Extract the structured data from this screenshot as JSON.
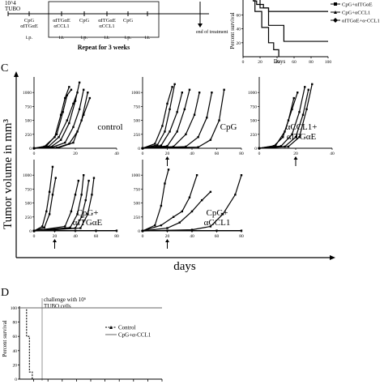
{
  "figure": {
    "panel_labels": {
      "c": "C",
      "d": "D"
    }
  },
  "schedule": {
    "top_text": "10^4",
    "top_text2": "TUBO",
    "boxes": [
      {
        "top": "CpG",
        "bottom": "αITGαE"
      },
      {
        "top": "αITGαE",
        "bottom": "αCCL1"
      },
      {
        "top": "CpG",
        "bottom": ""
      },
      {
        "top": "αITGαE",
        "bottom": "αCCL1"
      },
      {
        "top": "CpG",
        "bottom": ""
      }
    ],
    "routes": [
      "i.p.",
      "i.t.",
      "i.p.",
      "i.t.",
      "i.p.",
      "i.t."
    ],
    "repeat_text": "Repeat for 3 weeks",
    "end_text": "end of treatment"
  },
  "survival_top": {
    "ylabel": "Percent survival",
    "xlabel": "Days",
    "xticks": [
      "0",
      "20",
      "40",
      "60",
      "80",
      "100"
    ],
    "yticks": [
      "20",
      "40",
      "60"
    ],
    "legend": [
      "CpG+αITGαE",
      "CpG+αCCL1",
      "αITGαE+α-CCL1"
    ]
  },
  "panel_c": {
    "ylabel": "Tumor volume in mm³",
    "xlabel": "days",
    "yticks": [
      "0",
      "250",
      "500",
      "750",
      "1000"
    ],
    "xticks_short": [
      "0",
      "20",
      "40"
    ],
    "xticks_long": [
      "0",
      "20",
      "40",
      "60",
      "80"
    ],
    "subplots": [
      {
        "label": "control"
      },
      {
        "label": "CpG"
      },
      {
        "label": "αCCL1+",
        "label2": "αITGαE"
      },
      {
        "label": "CpG+",
        "label2": "αITGαE"
      },
      {
        "label": "CpG+",
        "label2": "αCCL1"
      }
    ]
  },
  "panel_d": {
    "ylabel": "Percent survival",
    "yticks": [
      "0",
      "20",
      "40",
      "60",
      "80",
      "100"
    ],
    "annotation": "challenge with 10⁶",
    "annotation2": "TUBO cells",
    "legend": [
      "Control",
      "CpG+α-CCL1"
    ]
  },
  "chart_data": [
    {
      "type": "line",
      "title": "",
      "xlabel": "Days",
      "ylabel": "Percent survival",
      "xlim": [
        0,
        100
      ],
      "ylim": [
        0,
        100
      ],
      "series": [
        {
          "name": "CpG+αITGαE",
          "x": [
            0,
            12,
            12,
            16,
            16,
            24,
            24,
            30,
            30,
            100
          ],
          "y": [
            100,
            100,
            80,
            80,
            75,
            75,
            70,
            70,
            65,
            65
          ]
        },
        {
          "name": "CpG+αCCL1",
          "x": [
            0,
            20,
            20,
            30,
            30,
            48,
            48,
            100
          ],
          "y": [
            100,
            100,
            70,
            70,
            45,
            45,
            22,
            22
          ]
        },
        {
          "name": "αITGαE+α-CCL1",
          "x": [
            0,
            14,
            14,
            22,
            22,
            30,
            30,
            36,
            36,
            42,
            42
          ],
          "y": [
            100,
            100,
            65,
            65,
            42,
            42,
            20,
            20,
            10,
            10,
            0
          ]
        }
      ]
    },
    {
      "type": "line",
      "title": "control",
      "xlabel": "days",
      "ylabel": "Tumor volume in mm³",
      "xlim": [
        0,
        40
      ],
      "ylim": [
        0,
        1250
      ],
      "series": [
        {
          "x": [
            0,
            5,
            10,
            13,
            15,
            17
          ],
          "y": [
            0,
            30,
            200,
            600,
            900,
            1100
          ]
        },
        {
          "x": [
            0,
            6,
            11,
            14,
            16,
            18
          ],
          "y": [
            0,
            40,
            250,
            650,
            950,
            1050
          ]
        },
        {
          "x": [
            0,
            7,
            12,
            16,
            19,
            21
          ],
          "y": [
            0,
            30,
            200,
            500,
            800,
            1000
          ]
        },
        {
          "x": [
            0,
            8,
            13,
            17,
            20,
            22
          ],
          "y": [
            0,
            20,
            150,
            450,
            850,
            1180
          ]
        },
        {
          "x": [
            0,
            9,
            15,
            19,
            22,
            24
          ],
          "y": [
            0,
            20,
            100,
            380,
            700,
            1050
          ]
        },
        {
          "x": [
            0,
            11,
            17,
            21,
            24,
            27
          ],
          "y": [
            0,
            10,
            80,
            300,
            600,
            900
          ]
        },
        {
          "x": [
            0,
            12,
            19,
            23,
            26
          ],
          "y": [
            0,
            10,
            100,
            500,
            1000
          ]
        }
      ]
    },
    {
      "type": "line",
      "title": "CpG",
      "xlabel": "days",
      "ylabel": "Tumor volume in mm³",
      "xlim": [
        0,
        80
      ],
      "ylim": [
        0,
        1250
      ],
      "series": [
        {
          "x": [
            0,
            10,
            16,
            20,
            24
          ],
          "y": [
            0,
            80,
            400,
            800,
            1100
          ]
        },
        {
          "x": [
            0,
            12,
            18,
            22,
            26
          ],
          "y": [
            0,
            60,
            300,
            700,
            1150
          ]
        },
        {
          "x": [
            0,
            15,
            22,
            28,
            32
          ],
          "y": [
            0,
            50,
            300,
            650,
            1000
          ]
        },
        {
          "x": [
            0,
            20,
            28,
            34,
            38
          ],
          "y": [
            0,
            40,
            300,
            700,
            1050
          ]
        },
        {
          "x": [
            0,
            25,
            35,
            42,
            46
          ],
          "y": [
            0,
            30,
            250,
            600,
            1000
          ]
        },
        {
          "x": [
            0,
            35,
            45,
            52,
            56
          ],
          "y": [
            0,
            30,
            200,
            550,
            1000
          ]
        },
        {
          "x": [
            0,
            45,
            55,
            62,
            66
          ],
          "y": [
            0,
            20,
            150,
            500,
            1050
          ]
        }
      ]
    },
    {
      "type": "line",
      "title": "αCCL1+ αITGαE",
      "xlabel": "days",
      "ylabel": "Tumor volume in mm³",
      "xlim": [
        0,
        40
      ],
      "ylim": [
        0,
        1250
      ],
      "series": [
        {
          "x": [
            0,
            8,
            13,
            16,
            19
          ],
          "y": [
            0,
            40,
            200,
            500,
            900
          ]
        },
        {
          "x": [
            0,
            9,
            14,
            18,
            21
          ],
          "y": [
            0,
            50,
            300,
            700,
            1000
          ]
        },
        {
          "x": [
            0,
            12,
            18,
            22,
            25
          ],
          "y": [
            0,
            40,
            250,
            650,
            1100
          ]
        },
        {
          "x": [
            0,
            14,
            20,
            24,
            27
          ],
          "y": [
            0,
            30,
            200,
            600,
            1050
          ]
        },
        {
          "x": [
            0,
            16,
            22,
            26,
            29
          ],
          "y": [
            0,
            30,
            200,
            700,
            1150
          ]
        }
      ]
    },
    {
      "type": "line",
      "title": "CpG+ αITGαE",
      "xlabel": "days",
      "ylabel": "Tumor volume in mm³",
      "xlim": [
        0,
        80
      ],
      "ylim": [
        0,
        1250
      ],
      "series": [
        {
          "x": [
            0,
            8,
            12,
            15,
            18
          ],
          "y": [
            0,
            80,
            350,
            700,
            1150
          ]
        },
        {
          "x": [
            0,
            10,
            15,
            18,
            21
          ],
          "y": [
            0,
            60,
            300,
            650,
            950
          ]
        },
        {
          "x": [
            0,
            30,
            36,
            40,
            43
          ],
          "y": [
            0,
            80,
            350,
            650,
            900
          ]
        },
        {
          "x": [
            0,
            35,
            42,
            46,
            48
          ],
          "y": [
            0,
            60,
            300,
            650,
            1000
          ]
        },
        {
          "x": [
            0,
            40,
            46,
            50,
            53
          ],
          "y": [
            0,
            50,
            250,
            550,
            900
          ]
        },
        {
          "x": [
            0,
            45,
            52,
            56,
            58
          ],
          "y": [
            0,
            50,
            300,
            650,
            950
          ]
        },
        {
          "x": [
            0,
            20,
            40,
            60,
            80
          ],
          "y": [
            0,
            5,
            5,
            5,
            5
          ]
        }
      ]
    },
    {
      "type": "line",
      "title": "CpG+ αCCL1",
      "xlabel": "days",
      "ylabel": "Tumor volume in mm³",
      "xlim": [
        0,
        80
      ],
      "ylim": [
        0,
        1250
      ],
      "series": [
        {
          "x": [
            0,
            10,
            15,
            18,
            21
          ],
          "y": [
            0,
            100,
            450,
            850,
            1100
          ]
        },
        {
          "x": [
            0,
            15,
            25,
            32,
            38,
            44
          ],
          "y": [
            0,
            100,
            250,
            350,
            600,
            1000
          ]
        },
        {
          "x": [
            0,
            20,
            30,
            40,
            48,
            55
          ],
          "y": [
            0,
            50,
            150,
            350,
            550,
            700
          ]
        },
        {
          "x": [
            0,
            40,
            55,
            65,
            75,
            80
          ],
          "y": [
            0,
            20,
            80,
            300,
            650,
            1000
          ]
        },
        {
          "x": [
            0,
            20,
            40,
            60,
            80
          ],
          "y": [
            0,
            5,
            5,
            5,
            5
          ]
        }
      ]
    },
    {
      "type": "line",
      "title": "",
      "xlabel": "",
      "ylabel": "Percent survival",
      "xlim": [
        0,
        100
      ],
      "ylim": [
        0,
        100
      ],
      "series": [
        {
          "name": "Control",
          "x": [
            0,
            5,
            5,
            7,
            7,
            9,
            9
          ],
          "y": [
            100,
            100,
            60,
            60,
            10,
            10,
            0
          ]
        },
        {
          "name": "CpG+α-CCL1",
          "x": [
            0,
            100
          ],
          "y": [
            100,
            100
          ]
        }
      ]
    }
  ]
}
